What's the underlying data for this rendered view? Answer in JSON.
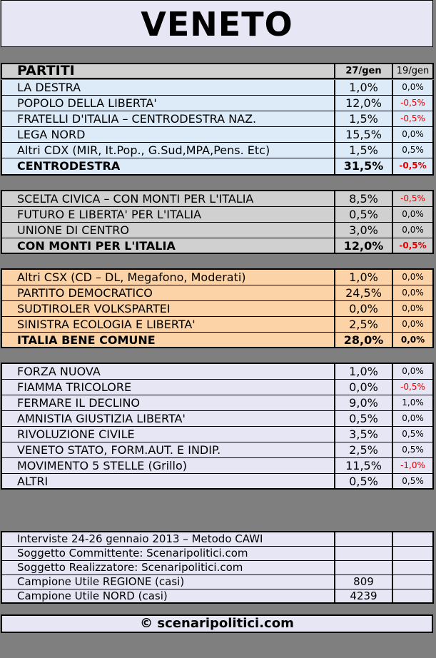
{
  "title": "VENETO",
  "header": {
    "col1": "PARTITI",
    "col2": "27/gen",
    "col3": "19/gen"
  },
  "groups": [
    {
      "bg": "#dcebf7",
      "rows": [
        {
          "name": "LA DESTRA",
          "val": "1,0%",
          "prev": "0,0%",
          "prev_color": "#000000"
        },
        {
          "name": "POPOLO DELLA LIBERTA'",
          "val": "12,0%",
          "prev": "-0,5%",
          "prev_color": "#e00000"
        },
        {
          "name": "FRATELLI D'ITALIA – CENTRODESTRA NAZ.",
          "val": "1,5%",
          "prev": "-0,5%",
          "prev_color": "#e00000"
        },
        {
          "name": "LEGA NORD",
          "val": "15,5%",
          "prev": "0,0%",
          "prev_color": "#000000"
        },
        {
          "name": "Altri CDX (MIR, It.Pop., G.Sud,MPA,Pens. Etc)",
          "val": "1,5%",
          "prev": "0,5%",
          "prev_color": "#000000"
        },
        {
          "name": "CENTRODESTRA",
          "val": "31,5%",
          "prev": "-0,5%",
          "prev_color": "#e00000",
          "total": true
        }
      ]
    },
    {
      "bg": "#d0d0d0",
      "rows": [
        {
          "name": "SCELTA CIVICA – CON MONTI PER L'ITALIA",
          "val": "8,5%",
          "prev": "-0,5%",
          "prev_color": "#e00000"
        },
        {
          "name": "FUTURO E LIBERTA' PER L'ITALIA",
          "val": "0,5%",
          "prev": "0,0%",
          "prev_color": "#000000"
        },
        {
          "name": "UNIONE DI CENTRO",
          "val": "3,0%",
          "prev": "0,0%",
          "prev_color": "#000000"
        },
        {
          "name": "CON MONTI PER L'ITALIA",
          "val": "12,0%",
          "prev": "-0,5%",
          "prev_color": "#e00000",
          "total": true
        }
      ]
    },
    {
      "bg": "#fbd3a6",
      "rows": [
        {
          "name": "Altri CSX (CD – DL, Megafono, Moderati)",
          "val": "1,0%",
          "prev": "0,0%",
          "prev_color": "#000000"
        },
        {
          "name": "PARTITO DEMOCRATICO",
          "val": "24,5%",
          "prev": "0,0%",
          "prev_color": "#000000"
        },
        {
          "name": "SUDTIROLER VOLKSPARTEI",
          "val": "0,0%",
          "prev": "0,0%",
          "prev_color": "#000000"
        },
        {
          "name": "SINISTRA ECOLOGIA E LIBERTA'",
          "val": "2,5%",
          "prev": "0,0%",
          "prev_color": "#000000"
        },
        {
          "name": "ITALIA BENE COMUNE",
          "val": "28,0%",
          "prev": "0,0%",
          "prev_color": "#000000",
          "total": true
        }
      ]
    },
    {
      "bg": "#e6e6f5",
      "rows": [
        {
          "name": "FORZA NUOVA",
          "val": "1,0%",
          "prev": "0,0%",
          "prev_color": "#000000"
        },
        {
          "name": "FIAMMA TRICOLORE",
          "val": "0,0%",
          "prev": "-0,5%",
          "prev_color": "#e00000"
        },
        {
          "name": "FERMARE IL DECLINO",
          "val": "9,0%",
          "prev": "1,0%",
          "prev_color": "#000000"
        },
        {
          "name": "AMNISTIA GIUSTIZIA LIBERTA'",
          "val": "0,5%",
          "prev": "0,0%",
          "prev_color": "#000000"
        },
        {
          "name": "RIVOLUZIONE CIVILE",
          "val": "3,5%",
          "prev": "0,5%",
          "prev_color": "#000000"
        },
        {
          "name": "VENETO STATO, FORM.AUT. E INDIP.",
          "val": "2,5%",
          "prev": "0,5%",
          "prev_color": "#000000"
        },
        {
          "name": "MOVIMENTO 5 STELLE (Grillo)",
          "val": "11,5%",
          "prev": "-1,0%",
          "prev_color": "#e00000"
        },
        {
          "name": "ALTRI",
          "val": "0,5%",
          "prev": "0,5%",
          "prev_color": "#000000"
        }
      ]
    }
  ],
  "info": [
    {
      "label": "Interviste 24-26 gennaio 2013 – Metodo CAWI",
      "value": ""
    },
    {
      "label": "Soggetto Committente: Scenaripolitici.com",
      "value": ""
    },
    {
      "label": "Soggetto Realizzatore: Scenaripolitici.com",
      "value": ""
    },
    {
      "label": "Campione Utile REGIONE (casi)",
      "value": "809"
    },
    {
      "label": "Campione Utile NORD (casi)",
      "value": "4239"
    }
  ],
  "footer": "© scenaripolitici.com"
}
